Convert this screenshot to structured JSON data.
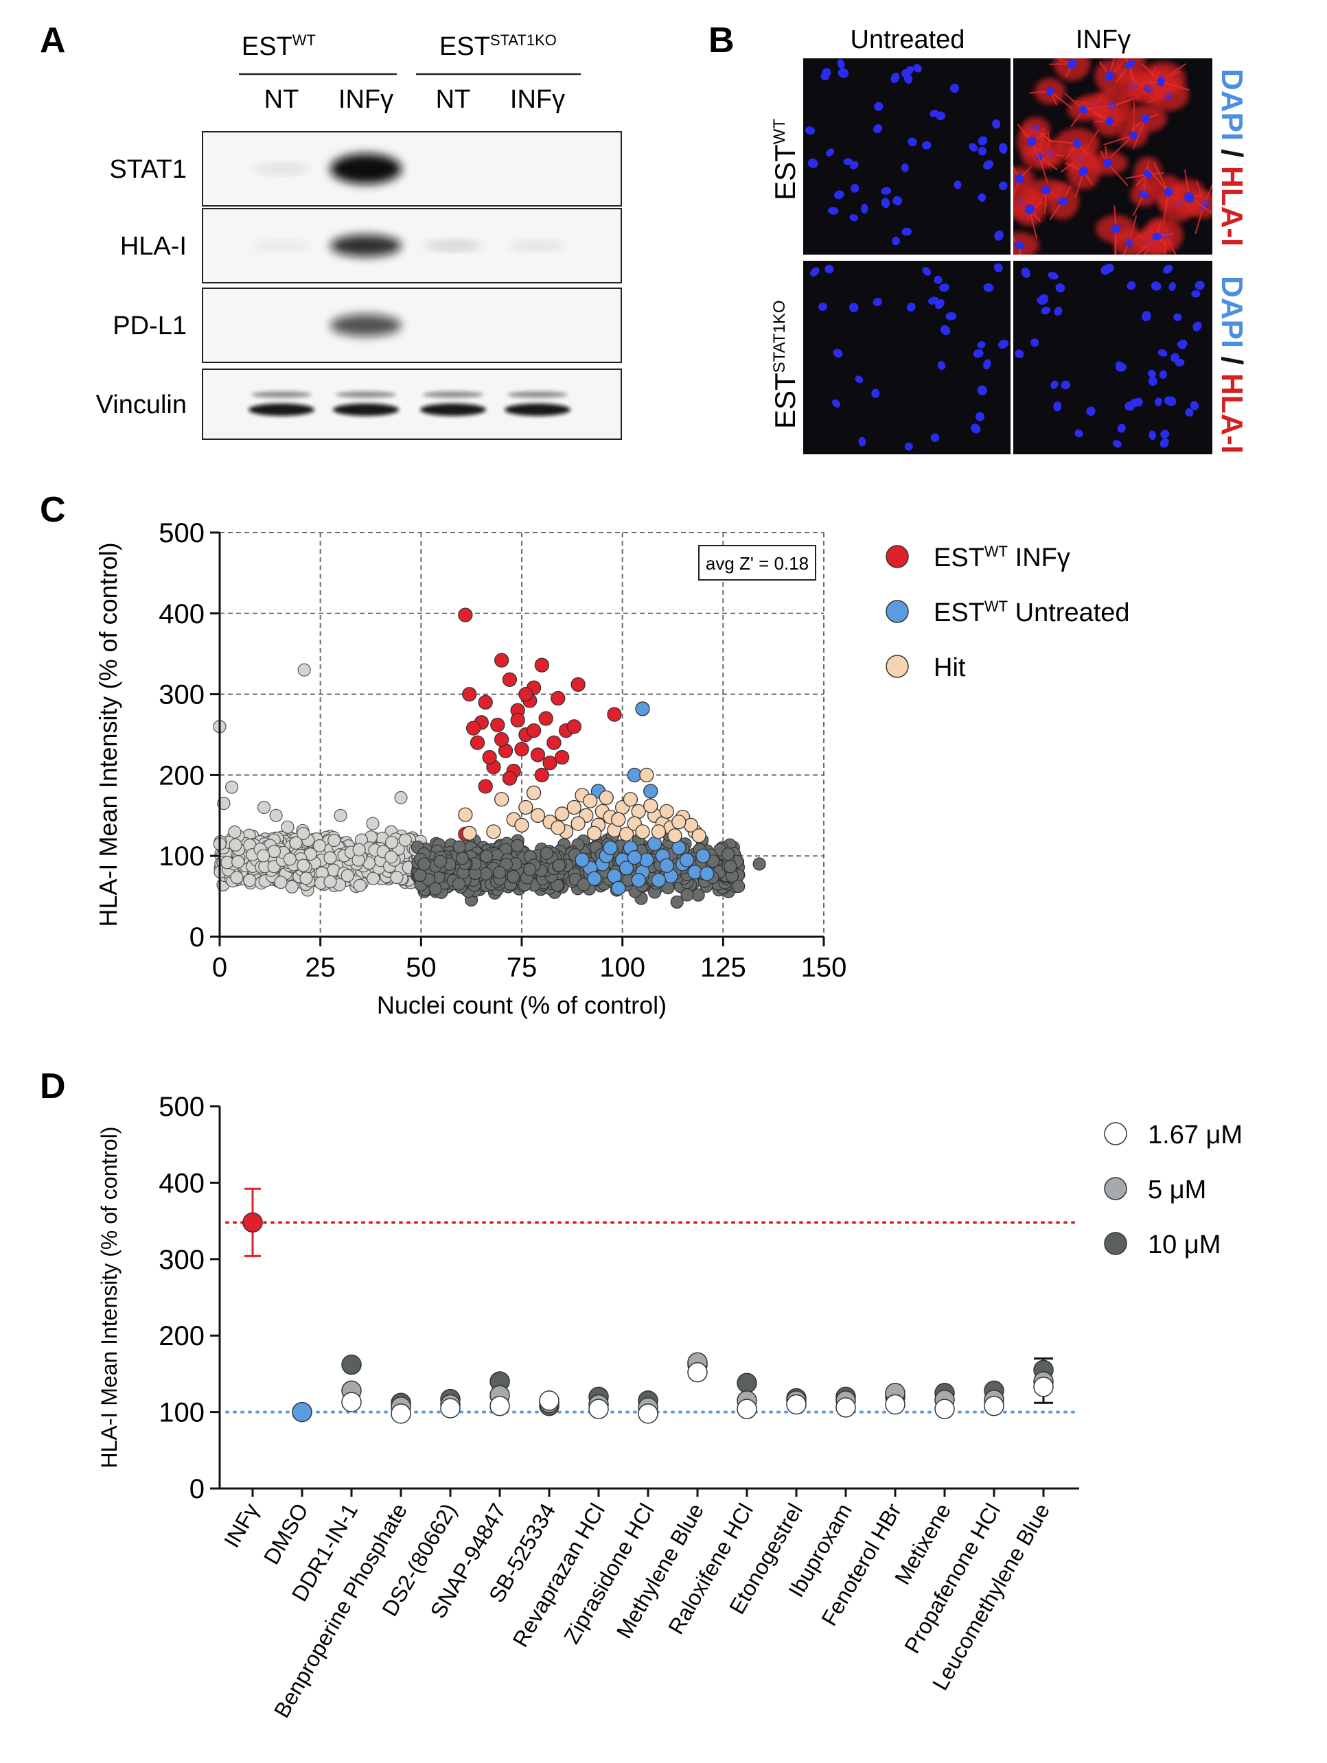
{
  "panels": {
    "A": {
      "letter": "A",
      "group1": {
        "base": "EST",
        "sup": "WT"
      },
      "group2": {
        "base": "EST",
        "sup": "STAT1KO"
      },
      "lanes": [
        "NT",
        "INFγ",
        "NT",
        "INFγ"
      ],
      "blots": [
        {
          "label": "STAT1",
          "bands": [
            0.12,
            1.0,
            0.0,
            0.0
          ]
        },
        {
          "label": "HLA-I",
          "bands": [
            0.08,
            0.85,
            0.18,
            0.1
          ]
        },
        {
          "label": "PD-L1",
          "bands": [
            0.0,
            0.7,
            0.0,
            0.0
          ]
        },
        {
          "label": "Vinculin",
          "bands": [
            0.95,
            0.95,
            0.95,
            0.95
          ]
        }
      ]
    },
    "B": {
      "letter": "B",
      "columns": [
        "Untreated",
        "INFγ"
      ],
      "rows": [
        {
          "base": "EST",
          "sup": "WT"
        },
        {
          "base": "EST",
          "sup": "STAT1KO"
        }
      ],
      "stain_dapi": "DAPI",
      "stain_sep": " / ",
      "stain_hla": "HLA-I",
      "colors": {
        "dapi": "#4a8fe0",
        "hla": "#d42020",
        "nuclei": "#2a2cf0",
        "bg": "#0b0b10"
      }
    },
    "C": {
      "letter": "C",
      "annotation": "avg Z' = 0.18",
      "legend": [
        {
          "base": "EST",
          "sup": "WT",
          "rest": " INFγ",
          "color": "#e0202a"
        },
        {
          "base": "EST",
          "sup": "WT",
          "rest": " Untreated",
          "color": "#5b9be0"
        },
        {
          "base": "Hit",
          "sup": "",
          "rest": "",
          "color": "#f6d3b2"
        }
      ]
    },
    "D": {
      "letter": "D",
      "legend": [
        {
          "label": "1.67  μM",
          "color": "#ffffff"
        },
        {
          "label": "5  μM",
          "color": "#a5aaac"
        },
        {
          "label": "10  μM",
          "color": "#5a5f60"
        }
      ]
    }
  },
  "chart_data": [
    {
      "type": "scatter",
      "panel": "C",
      "xlabel": "Nuclei count (% of control)",
      "ylabel": "HLA-I Mean Intensity (% of control)",
      "xlim": [
        0,
        150
      ],
      "ylim": [
        0,
        500
      ],
      "xticks": [
        0,
        25,
        50,
        75,
        100,
        125,
        150
      ],
      "yticks": [
        0,
        100,
        200,
        300,
        400,
        500
      ],
      "grid": true,
      "legend_position": "right",
      "series": [
        {
          "name": "EST WT INFγ",
          "color": "#e0202a",
          "points": [
            [
              61,
              398
            ],
            [
              70,
              342
            ],
            [
              80,
              336
            ],
            [
              89,
              312
            ],
            [
              98,
              275
            ],
            [
              62,
              300
            ],
            [
              72,
              318
            ],
            [
              78,
              308
            ],
            [
              66,
              290
            ],
            [
              84,
              295
            ],
            [
              69,
              262
            ],
            [
              74,
              280
            ],
            [
              76,
              250
            ],
            [
              81,
              270
            ],
            [
              64,
              240
            ],
            [
              71,
              230
            ],
            [
              79,
              225
            ],
            [
              68,
              210
            ],
            [
              73,
              205
            ],
            [
              82,
              215
            ],
            [
              86,
              255
            ],
            [
              65,
              265
            ],
            [
              77,
              292
            ],
            [
              75,
              232
            ],
            [
              70,
              244
            ],
            [
              83,
              240
            ],
            [
              67,
              222
            ],
            [
              72,
              196
            ],
            [
              78,
              255
            ],
            [
              80,
              200
            ],
            [
              66,
              186
            ],
            [
              61,
              127
            ],
            [
              85,
              222
            ],
            [
              74,
              268
            ],
            [
              63,
              258
            ],
            [
              76,
              300
            ],
            [
              88,
              260
            ]
          ]
        },
        {
          "name": "EST WT Untreated",
          "color": "#5b9be0",
          "points": [
            [
              105,
              282
            ],
            [
              103,
              200
            ],
            [
              94,
              180
            ],
            [
              107,
              180
            ],
            [
              100,
              95
            ],
            [
              95,
              90
            ],
            [
              110,
              100
            ],
            [
              115,
              90
            ],
            [
              105,
              80
            ],
            [
              98,
              75
            ],
            [
              120,
              100
            ],
            [
              112,
              75
            ],
            [
              92,
              85
            ],
            [
              102,
              110
            ],
            [
              108,
              115
            ],
            [
              118,
              80
            ],
            [
              96,
              100
            ],
            [
              104,
              70
            ],
            [
              90,
              95
            ],
            [
              114,
              110
            ],
            [
              99,
              60
            ],
            [
              106,
              95
            ],
            [
              116,
              95
            ],
            [
              101,
              85
            ],
            [
              111,
              88
            ],
            [
              93,
              72
            ],
            [
              121,
              78
            ],
            [
              97,
              110
            ],
            [
              109,
              70
            ],
            [
              103,
              98
            ]
          ]
        },
        {
          "name": "Hit",
          "color": "#f6d3b2",
          "points": [
            [
              61,
              151
            ],
            [
              70,
              170
            ],
            [
              78,
              178
            ],
            [
              62,
              128
            ],
            [
              68,
              130
            ],
            [
              73,
              145
            ],
            [
              75,
              138
            ],
            [
              82,
              142
            ],
            [
              85,
              152
            ],
            [
              88,
              160
            ],
            [
              90,
              175
            ],
            [
              92,
              168
            ],
            [
              95,
              155
            ],
            [
              97,
              148
            ],
            [
              100,
              160
            ],
            [
              102,
              170
            ],
            [
              104,
              155
            ],
            [
              106,
              200
            ],
            [
              108,
              150
            ],
            [
              110,
              140
            ],
            [
              112,
              135
            ],
            [
              115,
              148
            ],
            [
              118,
              130
            ],
            [
              86,
              130
            ],
            [
              94,
              138
            ],
            [
              98,
              132
            ],
            [
              101,
              127
            ],
            [
              107,
              162
            ],
            [
              113,
              125
            ],
            [
              117,
              138
            ],
            [
              91,
              150
            ],
            [
              96,
              172
            ],
            [
              103,
              140
            ],
            [
              109,
              130
            ],
            [
              79,
              150
            ],
            [
              84,
              135
            ],
            [
              76,
              160
            ],
            [
              99,
              145
            ],
            [
              105,
              130
            ],
            [
              111,
              155
            ],
            [
              114,
              142
            ],
            [
              119,
              125
            ],
            [
              89,
              140
            ],
            [
              93,
              128
            ]
          ]
        }
      ]
    },
    {
      "type": "scatter",
      "panel": "D",
      "xlabel": "",
      "ylabel": "HLA-I Mean Intensity  (% of control)",
      "ylim": [
        0,
        500
      ],
      "yticks": [
        0,
        100,
        200,
        300,
        400,
        500
      ],
      "legend_position": "top-right",
      "categories": [
        "INFγ",
        "DMSO",
        "DDR1-IN-1",
        "Benproperine Phosphate",
        "DS2-(80662)",
        "SNAP-94847",
        "SB-525334",
        "Revaprazan HCl",
        "Ziprasidone HCl",
        "Methylene Blue",
        "Raloxifene HCl",
        "Etonogestrel",
        "Ibuproxam",
        "Fenoterol HBr",
        "Metixene",
        "Propafenone HCl",
        "Leucomethylene Blue"
      ],
      "reference_lines": [
        {
          "y": 348,
          "color": "#e0202a"
        },
        {
          "y": 100,
          "color": "#5b9be0"
        }
      ],
      "controls": [
        {
          "category": "INFγ",
          "value": 348,
          "error": 44,
          "color": "#e0202a"
        },
        {
          "category": "DMSO",
          "value": 100,
          "error": 0,
          "color": "#5b9be0"
        }
      ],
      "series": [
        {
          "name": "10  μM",
          "color": "#5a5f60",
          "values": [
            null,
            null,
            162,
            112,
            117,
            140,
            108,
            120,
            115,
            162,
            138,
            118,
            120,
            120,
            125,
            128,
            155
          ]
        },
        {
          "name": "5  μM",
          "color": "#a5aaac",
          "values": [
            null,
            null,
            128,
            107,
            110,
            122,
            112,
            110,
            106,
            165,
            115,
            115,
            115,
            125,
            116,
            116,
            140
          ]
        },
        {
          "name": "1.67  μM",
          "color": "#ffffff",
          "values": [
            null,
            null,
            113,
            98,
            105,
            108,
            115,
            104,
            98,
            152,
            104,
            110,
            106,
            110,
            104,
            108,
            133
          ]
        }
      ],
      "error_bars": [
        {
          "category": "Leucomethylene Blue",
          "high": 170,
          "low": 112
        }
      ]
    }
  ]
}
